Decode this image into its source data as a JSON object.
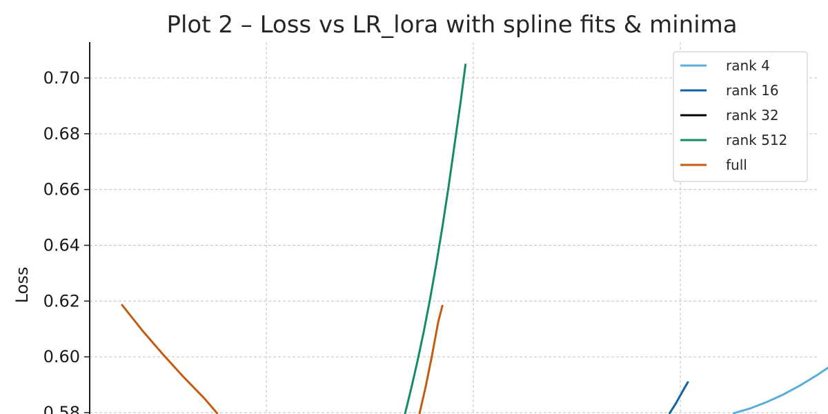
{
  "chart_data": {
    "type": "line",
    "title": "Plot 2 – Loss vs LR_lora with spline fits & minima",
    "ylabel": "Loss",
    "xlabel": "",
    "yticks": [
      "0.58",
      "0.60",
      "0.62",
      "0.64",
      "0.66",
      "0.68",
      "0.70"
    ],
    "ytick_values": [
      0.58,
      0.6,
      0.62,
      0.64,
      0.66,
      0.68,
      0.7
    ],
    "ylim": [
      0.58,
      0.712
    ],
    "x_gridlines": 4,
    "grid": true,
    "legend_position": "top-right",
    "series": [
      {
        "name": "rank 4",
        "color": "#5aaed7",
        "points": [
          [
            0.63,
            0.5798
          ],
          [
            0.67,
            0.5815
          ],
          [
            0.71,
            0.5838
          ],
          [
            0.75,
            0.5865
          ],
          [
            0.79,
            0.5897
          ],
          [
            0.83,
            0.5933
          ],
          [
            0.87,
            0.5973
          ],
          [
            0.898,
            0.6006
          ]
        ]
      },
      {
        "name": "rank 16",
        "color": "#0f64a2",
        "points": [
          [
            0.475,
            0.5798
          ],
          [
            0.49,
            0.5833
          ],
          [
            0.505,
            0.5873
          ],
          [
            0.519,
            0.5909
          ]
        ]
      },
      {
        "name": "rank 32",
        "color": "#000000",
        "points": []
      },
      {
        "name": "rank 512",
        "color": "#158a66",
        "points": [
          [
            -0.165,
            0.5798
          ],
          [
            -0.15,
            0.5888
          ],
          [
            -0.135,
            0.5985
          ],
          [
            -0.12,
            0.609
          ],
          [
            -0.105,
            0.6205
          ],
          [
            -0.09,
            0.633
          ],
          [
            -0.075,
            0.6465
          ],
          [
            -0.06,
            0.661
          ],
          [
            -0.045,
            0.6765
          ],
          [
            -0.03,
            0.6922
          ],
          [
            -0.019,
            0.7048
          ]
        ]
      },
      {
        "name": "full",
        "color": "#c35c11",
        "points": [
          [
            -0.85,
            0.6186
          ],
          [
            -0.8,
            0.6093
          ],
          [
            -0.75,
            0.6007
          ],
          [
            -0.7,
            0.5926
          ],
          [
            -0.65,
            0.585
          ],
          [
            -0.62,
            0.5798
          ]
        ],
        "points_b": [
          [
            -0.13,
            0.5798
          ],
          [
            -0.115,
            0.5895
          ],
          [
            -0.1,
            0.6005
          ],
          [
            -0.085,
            0.6125
          ],
          [
            -0.075,
            0.6183
          ]
        ]
      }
    ]
  }
}
